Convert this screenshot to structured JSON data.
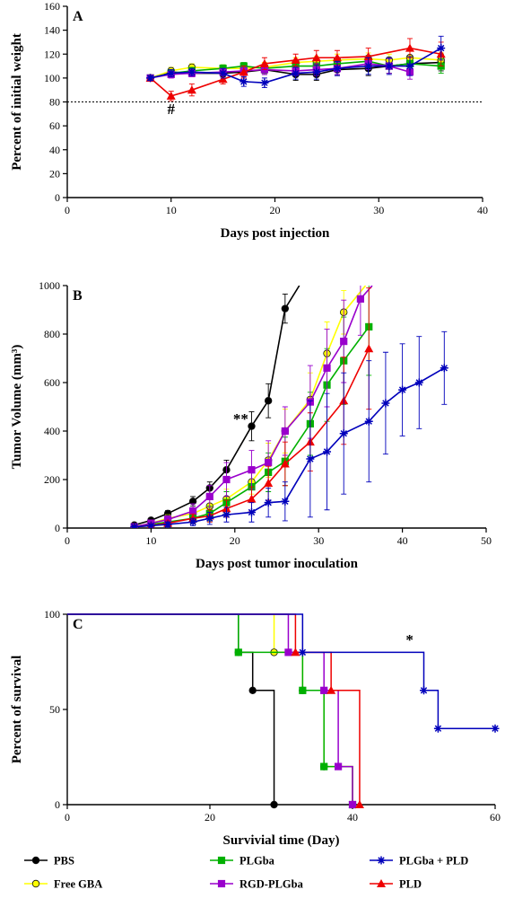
{
  "colors": {
    "PBS": "#000000",
    "Free GBA": "#ffff00",
    "PLGba": "#00b000",
    "RGD-PLGba": "#9900cc",
    "PLD": "#ee0000",
    "PLGba + PLD": "#0000bb"
  },
  "legend": {
    "placement": "bottom",
    "entries": [
      {
        "series": "PBS",
        "label": "PBS",
        "marker": "circle"
      },
      {
        "series": "Free GBA",
        "label": "Free GBA",
        "marker": "circle"
      },
      {
        "series": "PLGba",
        "label": "PLGba",
        "marker": "square"
      },
      {
        "series": "RGD-PLGba",
        "label": "RGD-PLGba",
        "marker": "square"
      },
      {
        "series": "PLGba + PLD",
        "label": "PLGba  + PLD",
        "marker": "star"
      },
      {
        "series": "PLD",
        "label": "PLD",
        "marker": "triangle"
      }
    ]
  },
  "chart_data": [
    {
      "type": "line",
      "panel_label": "A",
      "xlabel": "Days post injection",
      "ylabel": "Percent of initial weight",
      "xlim": [
        0,
        40
      ],
      "ylim": [
        0,
        160
      ],
      "xticks": [
        0,
        10,
        20,
        30,
        40
      ],
      "yticks": [
        0,
        20,
        40,
        60,
        80,
        100,
        120,
        140,
        160
      ],
      "grid": false,
      "reference_line": {
        "y": 80,
        "style": "dotted"
      },
      "annotations": [
        {
          "text": "#",
          "x": 10,
          "y": 70
        }
      ],
      "series": [
        {
          "name": "PBS",
          "marker": "circle",
          "x": [
            8,
            10,
            12,
            15,
            17,
            19,
            22,
            24,
            26,
            29,
            31,
            33,
            36
          ],
          "y": [
            100,
            105,
            104,
            104,
            105,
            107,
            103,
            103,
            107,
            108,
            110,
            112,
            113
          ],
          "err": [
            2,
            3,
            3,
            3,
            3,
            4,
            5,
            5,
            5,
            6,
            6,
            6,
            7
          ]
        },
        {
          "name": "Free GBA",
          "marker": "circle",
          "x": [
            8,
            10,
            12,
            15,
            17,
            19,
            22,
            24,
            26,
            29,
            31,
            33,
            36
          ],
          "y": [
            100,
            106,
            109,
            108,
            108,
            109,
            113,
            114,
            115,
            116,
            115,
            117,
            115
          ],
          "err": [
            2,
            3,
            3,
            3,
            3,
            4,
            4,
            4,
            5,
            5,
            5,
            6,
            6
          ]
        },
        {
          "name": "PLGba",
          "marker": "square",
          "x": [
            8,
            10,
            12,
            15,
            17,
            19,
            22,
            24,
            26,
            29,
            31,
            33,
            36
          ],
          "y": [
            100,
            104,
            106,
            108,
            110,
            108,
            110,
            110,
            112,
            114,
            110,
            112,
            110
          ],
          "err": [
            2,
            3,
            3,
            3,
            3,
            4,
            4,
            5,
            5,
            5,
            6,
            6,
            6
          ]
        },
        {
          "name": "RGD-PLGba",
          "marker": "square",
          "x": [
            8,
            10,
            12,
            15,
            17,
            19,
            22,
            24,
            26,
            29,
            31,
            33
          ],
          "y": [
            100,
            103,
            104,
            105,
            106,
            107,
            106,
            107,
            108,
            112,
            110,
            105
          ],
          "err": [
            2,
            3,
            3,
            3,
            4,
            4,
            4,
            5,
            5,
            5,
            6,
            6
          ]
        },
        {
          "name": "PLD",
          "marker": "triangle",
          "x": [
            8,
            10,
            12,
            15,
            17,
            19,
            22,
            24,
            26,
            29,
            33,
            36
          ],
          "y": [
            100,
            85,
            90,
            99,
            105,
            112,
            115,
            117,
            117,
            118,
            125,
            120
          ],
          "err": [
            2,
            4,
            5,
            4,
            5,
            5,
            5,
            6,
            6,
            7,
            8,
            10
          ]
        },
        {
          "name": "PLGba + PLD",
          "marker": "star",
          "x": [
            8,
            10,
            12,
            15,
            17,
            19,
            22,
            24,
            26,
            29,
            31,
            33,
            36
          ],
          "y": [
            100,
            104,
            105,
            104,
            97,
            96,
            104,
            105,
            108,
            110,
            110,
            110,
            125
          ],
          "err": [
            2,
            3,
            3,
            4,
            4,
            4,
            5,
            6,
            6,
            7,
            7,
            8,
            10
          ]
        }
      ]
    },
    {
      "type": "line",
      "panel_label": "B",
      "xlabel": "Days post tumor inoculation",
      "ylabel": "Tumor Volume (mm³)",
      "xlim": [
        0,
        50
      ],
      "ylim": [
        0,
        1000
      ],
      "xticks": [
        0,
        10,
        20,
        30,
        40,
        50
      ],
      "yticks": [
        0,
        200,
        400,
        600,
        800,
        1000
      ],
      "grid": false,
      "annotations": [
        {
          "text": "**",
          "x": 20.7,
          "y": 430
        }
      ],
      "series": [
        {
          "name": "PBS",
          "marker": "circle",
          "x": [
            8,
            10,
            12,
            15,
            17,
            19,
            22,
            24,
            26,
            27.7
          ],
          "y": [
            12,
            32,
            60,
            110,
            165,
            240,
            420,
            525,
            905,
            1000
          ],
          "err": [
            4,
            8,
            12,
            20,
            25,
            40,
            60,
            70,
            60,
            0
          ]
        },
        {
          "name": "Free GBA",
          "marker": "circle",
          "x": [
            8,
            10,
            12,
            15,
            17,
            19,
            22,
            24,
            26,
            29,
            31,
            33,
            35.6
          ],
          "y": [
            5,
            20,
            40,
            60,
            90,
            120,
            190,
            280,
            400,
            530,
            720,
            890,
            1000
          ],
          "err": [
            3,
            8,
            15,
            20,
            30,
            40,
            50,
            70,
            90,
            110,
            130,
            90,
            0
          ]
        },
        {
          "name": "PLGba",
          "marker": "square",
          "x": [
            8,
            10,
            12,
            15,
            17,
            19,
            22,
            24,
            26,
            29,
            31,
            33,
            36
          ],
          "y": [
            5,
            15,
            25,
            40,
            60,
            105,
            170,
            230,
            275,
            430,
            590,
            690,
            830
          ],
          "err": [
            3,
            8,
            12,
            20,
            30,
            45,
            60,
            80,
            100,
            130,
            150,
            180,
            200
          ]
        },
        {
          "name": "RGD-PLGba",
          "marker": "square",
          "x": [
            8,
            10,
            12,
            15,
            17,
            19,
            22,
            24,
            26,
            29,
            31,
            33,
            35,
            36.4
          ],
          "y": [
            5,
            20,
            35,
            70,
            130,
            200,
            240,
            270,
            400,
            520,
            660,
            770,
            945,
            1000
          ],
          "err": [
            3,
            8,
            15,
            30,
            45,
            70,
            80,
            90,
            100,
            150,
            160,
            170,
            150,
            0
          ]
        },
        {
          "name": "PLD",
          "marker": "triangle",
          "x": [
            8,
            10,
            12,
            15,
            17,
            19,
            22,
            24,
            26,
            29,
            33,
            36
          ],
          "y": [
            5,
            10,
            20,
            40,
            50,
            80,
            120,
            185,
            265,
            355,
            525,
            740
          ],
          "err": [
            3,
            6,
            10,
            18,
            25,
            35,
            50,
            70,
            90,
            120,
            180,
            250
          ]
        },
        {
          "name": "PLGba + PLD",
          "marker": "star",
          "x": [
            8,
            10,
            12,
            15,
            17,
            19,
            22,
            24,
            26,
            29,
            31,
            33,
            36,
            38,
            40,
            42,
            45
          ],
          "y": [
            5,
            10,
            15,
            25,
            40,
            55,
            65,
            105,
            110,
            285,
            315,
            390,
            440,
            515,
            570,
            600,
            660
          ],
          "err": [
            3,
            6,
            10,
            15,
            25,
            30,
            40,
            60,
            80,
            240,
            240,
            250,
            250,
            210,
            190,
            190,
            150
          ]
        }
      ]
    },
    {
      "type": "step",
      "panel_label": "C",
      "xlabel": "Survivial time (Day)",
      "ylabel": "Percent of survival",
      "xlim": [
        0,
        60
      ],
      "ylim": [
        0,
        100
      ],
      "xticks": [
        0,
        20,
        40,
        60
      ],
      "yticks": [
        0,
        50,
        100
      ],
      "grid": false,
      "annotations": [
        {
          "text": "*",
          "x": 48,
          "y": 84
        }
      ],
      "series": [
        {
          "name": "PBS",
          "marker": "circle",
          "times": [
            0,
            24,
            26,
            29
          ],
          "survival": [
            100,
            80,
            60,
            0
          ],
          "markers_x": [
            24,
            26,
            29
          ],
          "markers_y": [
            80,
            60,
            0
          ]
        },
        {
          "name": "Free GBA",
          "marker": "circle",
          "times": [
            0,
            29,
            33,
            36,
            40
          ],
          "survival": [
            100,
            80,
            60,
            20,
            0
          ],
          "markers_x": [
            29,
            33,
            36,
            40
          ],
          "markers_y": [
            80,
            60,
            20,
            0
          ]
        },
        {
          "name": "PLGba",
          "marker": "square",
          "times": [
            0,
            24,
            33,
            36,
            40
          ],
          "survival": [
            100,
            80,
            60,
            20,
            0
          ],
          "markers_x": [
            24,
            33,
            36,
            40
          ],
          "markers_y": [
            80,
            60,
            20,
            0
          ]
        },
        {
          "name": "RGD-PLGba",
          "marker": "square",
          "times": [
            0,
            31,
            36,
            38,
            40
          ],
          "survival": [
            100,
            80,
            60,
            20,
            0
          ],
          "markers_x": [
            31,
            36,
            38,
            40
          ],
          "markers_y": [
            80,
            60,
            20,
            0
          ]
        },
        {
          "name": "PLD",
          "marker": "triangle",
          "times": [
            0,
            32,
            37,
            41
          ],
          "survival": [
            100,
            80,
            60,
            0
          ],
          "markers_x": [
            32,
            37,
            41
          ],
          "markers_y": [
            80,
            60,
            0
          ]
        },
        {
          "name": "PLGba + PLD",
          "marker": "star",
          "times": [
            0,
            33,
            50,
            52
          ],
          "survival": [
            100,
            80,
            60,
            40
          ],
          "end_x": 60,
          "markers_x": [
            33,
            50,
            52,
            60
          ],
          "markers_y": [
            80,
            60,
            40,
            40
          ]
        }
      ]
    }
  ]
}
